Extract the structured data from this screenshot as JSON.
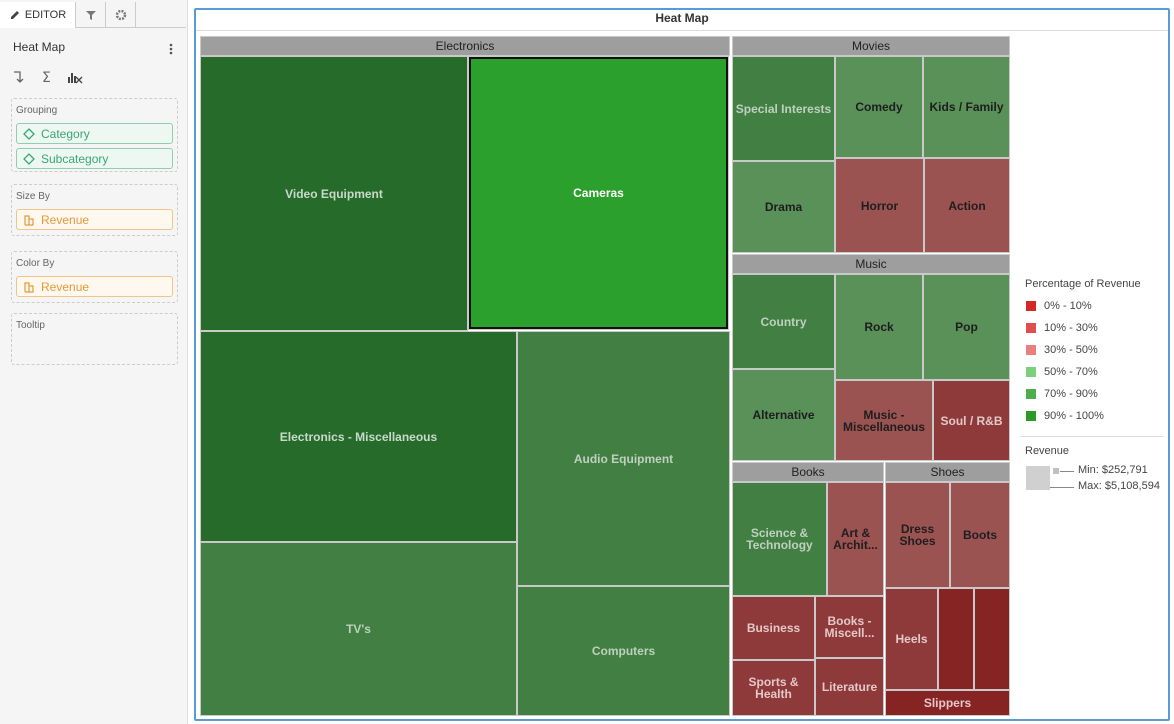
{
  "editor": {
    "tab": "EDITOR",
    "title": "Heat Map",
    "sections": [
      {
        "label": "Grouping",
        "fields": [
          "Category",
          "Subcategory"
        ],
        "kind": "dimension"
      },
      {
        "label": "Size By",
        "fields": [
          "Revenue"
        ],
        "kind": "measure"
      },
      {
        "label": "Color By",
        "fields": [
          "Revenue"
        ],
        "kind": "measure"
      },
      {
        "label": "Tooltip",
        "fields": [],
        "kind": "measure"
      }
    ]
  },
  "heatmap": {
    "title": "Heat Map",
    "groups": [
      {
        "name": "Electronics",
        "tiles": [
          {
            "label": "Video Equipment",
            "color": "#276b2b"
          },
          {
            "label": "Cameras",
            "color": "#2ca02c"
          },
          {
            "label": "Electronics - Miscellaneous",
            "color": "#276b2b"
          },
          {
            "label": "Audio Equipment",
            "color": "#417f42"
          },
          {
            "label": "TV's",
            "color": "#417f42"
          },
          {
            "label": "Computers",
            "color": "#417f42"
          }
        ]
      },
      {
        "name": "Movies",
        "tiles": [
          {
            "label": "Special Interests",
            "color": "#417f42"
          },
          {
            "label": "Comedy",
            "color": "#5a9158"
          },
          {
            "label": "Kids / Family",
            "color": "#5a9158"
          },
          {
            "label": "Drama",
            "color": "#5a9158"
          },
          {
            "label": "Horror",
            "color": "#9b5352"
          },
          {
            "label": "Action",
            "color": "#9b5352"
          }
        ]
      },
      {
        "name": "Music",
        "tiles": [
          {
            "label": "Country",
            "color": "#417f42"
          },
          {
            "label": "Rock",
            "color": "#5a9158"
          },
          {
            "label": "Pop",
            "color": "#5a9158"
          },
          {
            "label": "Alternative",
            "color": "#5a9158"
          },
          {
            "label": "Music - Miscellaneous",
            "color": "#9b5352"
          },
          {
            "label": "Soul / R&B",
            "color": "#8e3a3a"
          }
        ]
      },
      {
        "name": "Books",
        "tiles": [
          {
            "label": "Science & Technology",
            "color": "#417f42"
          },
          {
            "label": "Art & Archit...",
            "color": "#9b5352"
          },
          {
            "label": "Business",
            "color": "#8e3a3a"
          },
          {
            "label": "Books - Miscell...",
            "color": "#8e3a3a"
          },
          {
            "label": "Sports & Health",
            "color": "#8e3a3a"
          },
          {
            "label": "Literature",
            "color": "#8e3a3a"
          }
        ]
      },
      {
        "name": "Shoes",
        "tiles": [
          {
            "label": "Dress Shoes",
            "color": "#9b5352"
          },
          {
            "label": "Boots",
            "color": "#9b5352"
          },
          {
            "label": "Heels",
            "color": "#8e3a3a"
          },
          {
            "label": "Slippers",
            "color": "#862323"
          }
        ]
      }
    ]
  },
  "legend": {
    "title": "Percentage of Revenue",
    "items": [
      {
        "label": "0% - 10%",
        "color": "#d62728"
      },
      {
        "label": "10% - 30%",
        "color": "#e04d4d"
      },
      {
        "label": "30% - 50%",
        "color": "#e98080"
      },
      {
        "label": "50% - 70%",
        "color": "#7ccf7c"
      },
      {
        "label": "70% - 90%",
        "color": "#4cae4c"
      },
      {
        "label": "90% - 100%",
        "color": "#2a9a2a"
      }
    ],
    "size_title": "Revenue",
    "min": "Min: $252,791",
    "max": "Max: $5,108,594"
  }
}
